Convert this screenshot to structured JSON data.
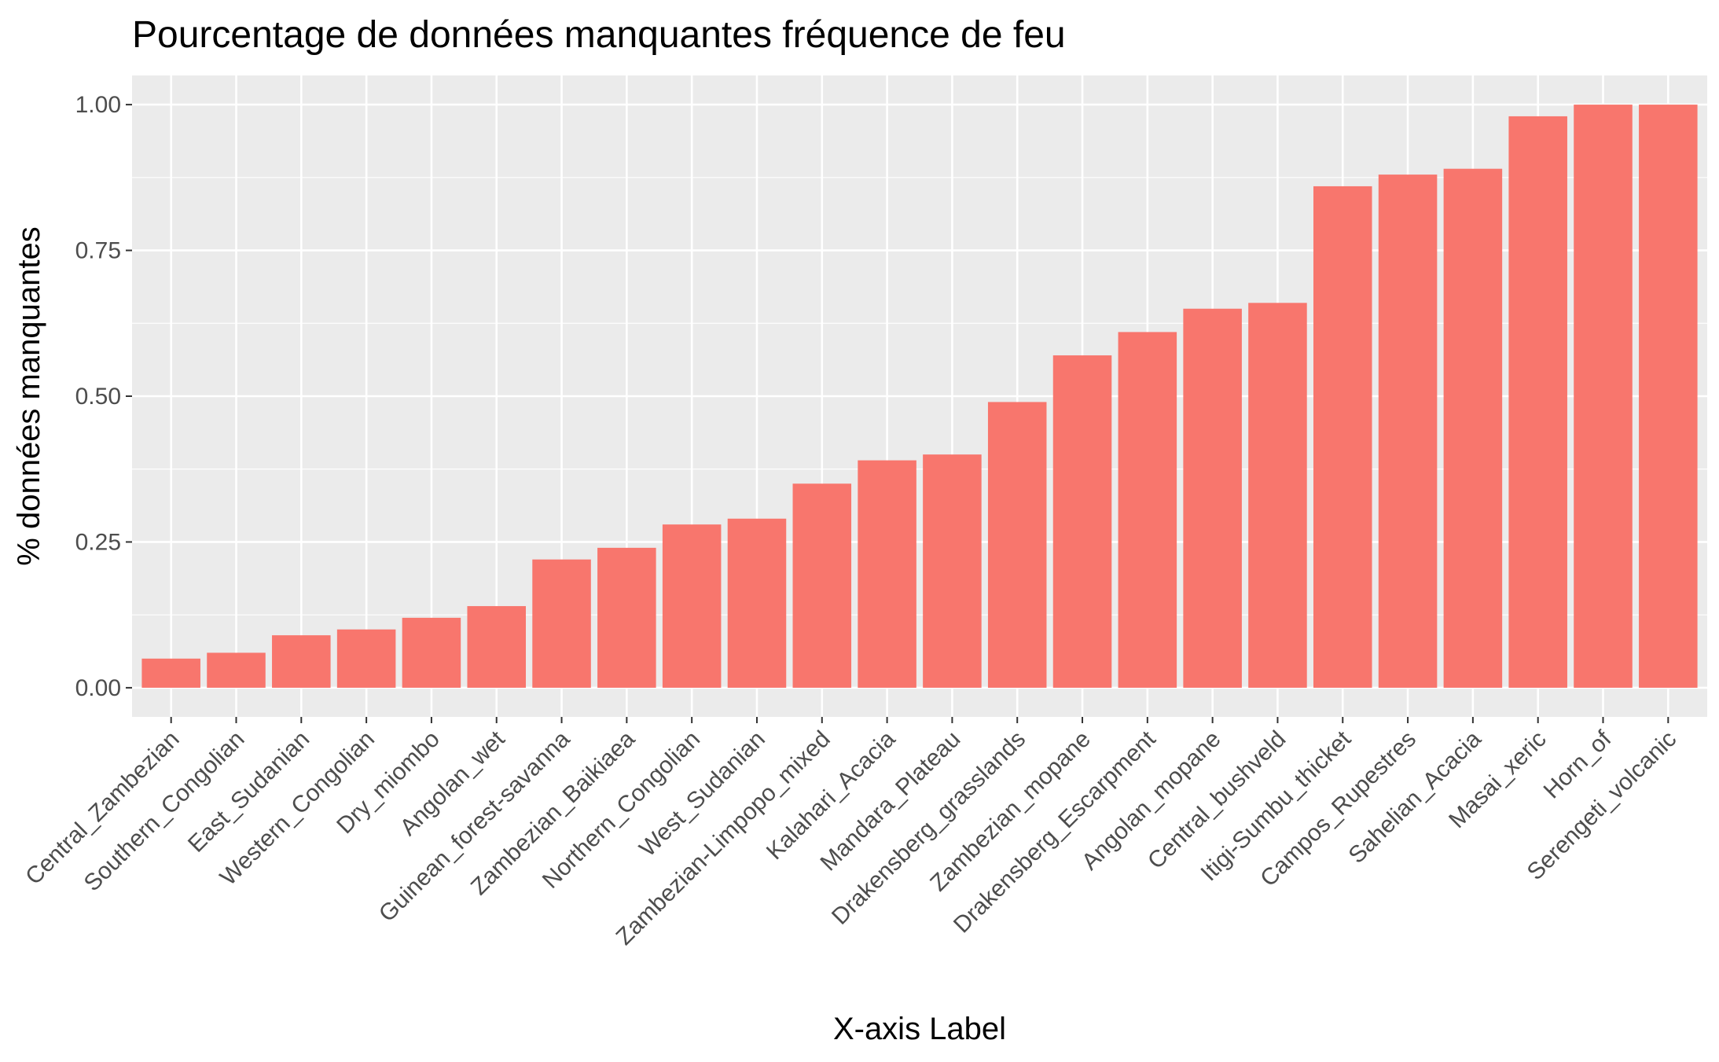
{
  "chart_data": {
    "type": "bar",
    "title": "Pourcentage de données manquantes fréquence de feu",
    "xlabel": "X-axis Label",
    "ylabel": "% données manquantes",
    "ylim": [
      -0.05,
      1.05
    ],
    "yticks": [
      0.0,
      0.25,
      0.5,
      0.75,
      1.0
    ],
    "ytick_labels": [
      "0.00",
      "0.25",
      "0.50",
      "0.75",
      "1.00"
    ],
    "grid": true,
    "bar_color": "#F8766D",
    "panel_background": "#EBEBEB",
    "categories": [
      "Central_Zambezian",
      "Southern_Congolian",
      "East_Sudanian",
      "Western_Congolian",
      "Dry_miombo",
      "Angolan_wet",
      "Guinean_forest-savanna",
      "Zambezian_Baikiaea",
      "Northern_Congolian",
      "West_Sudanian",
      "Zambezian-Limpopo_mixed",
      "Kalahari_Acacia",
      "Mandara_Plateau",
      "Drakensberg_grasslands",
      "Zambezian_mopane",
      "Drakensberg_Escarpment",
      "Angolan_mopane",
      "Central_bushveld",
      "Itigi-Sumbu_thicket",
      "Campos_Rupestres",
      "Sahelian_Acacia",
      "Masai_xeric",
      "Horn_of",
      "Serengeti_volcanic"
    ],
    "values": [
      0.05,
      0.06,
      0.09,
      0.1,
      0.12,
      0.14,
      0.22,
      0.24,
      0.28,
      0.29,
      0.35,
      0.39,
      0.4,
      0.49,
      0.57,
      0.61,
      0.65,
      0.66,
      0.86,
      0.88,
      0.89,
      0.98,
      1.0,
      1.0
    ]
  }
}
